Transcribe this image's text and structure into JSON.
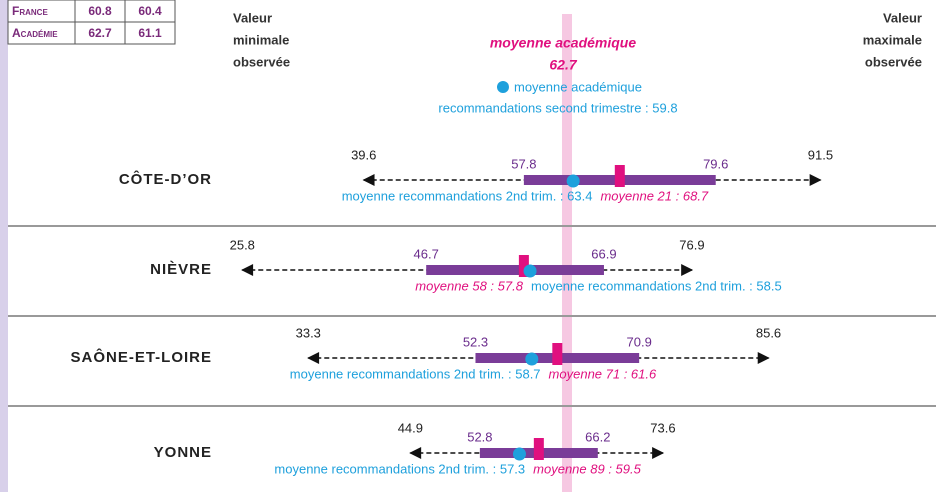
{
  "table": {
    "rows": [
      [
        "France",
        60.8,
        60.4
      ],
      [
        "Académie",
        62.7,
        61.1
      ]
    ]
  },
  "left_label": [
    "Valeur",
    "minimale",
    "observée"
  ],
  "right_label": [
    "Valeur",
    "maximale",
    "observée"
  ],
  "academic_mean": {
    "label": "moyenne académique",
    "value": 62.7
  },
  "legend": {
    "label": "moyenne académique",
    "note": "recommandations second trimestre : 59.8"
  },
  "departments": [
    {
      "name": "CÔTE-D’OR",
      "min": 39.6,
      "low": 57.8,
      "high": 79.6,
      "max": 91.5,
      "rec": 63.4,
      "rec_label": "moyenne recommandations 2nd trim. : 63.4",
      "mean": 68.7,
      "mean_label": "moyenne 21 : 68.7"
    },
    {
      "name": "NIÈVRE",
      "min": 25.8,
      "low": 46.7,
      "high": 66.9,
      "max": 76.9,
      "rec": 58.5,
      "rec_label": "moyenne recommandations 2nd trim. : 58.5",
      "mean": 57.8,
      "mean_label": "moyenne 58 : 57.8"
    },
    {
      "name": "SAÔNE-ET-LOIRE",
      "min": 33.3,
      "low": 52.3,
      "high": 70.9,
      "max": 85.6,
      "rec": 58.7,
      "rec_label": "moyenne recommandations 2nd trim. : 58.7",
      "mean": 61.6,
      "mean_label": "moyenne 71 : 61.6"
    },
    {
      "name": "YONNE",
      "min": 44.9,
      "low": 52.8,
      "high": 66.2,
      "max": 73.6,
      "rec": 57.3,
      "rec_label": "moyenne recommandations 2nd trim. : 57.3",
      "mean": 59.5,
      "mean_label": "moyenne 89 : 59.5"
    }
  ]
}
